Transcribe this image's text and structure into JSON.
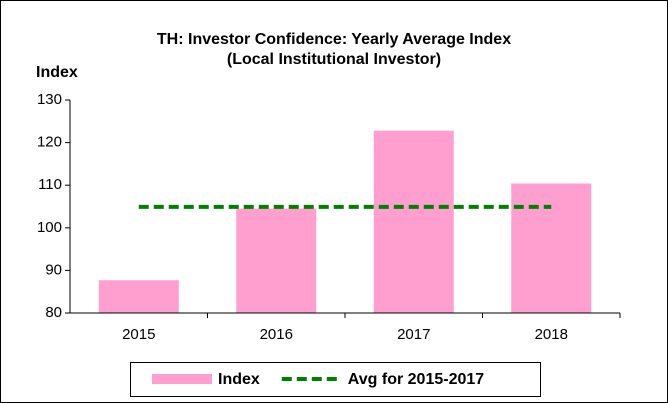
{
  "chart_data": {
    "type": "bar_line",
    "title": "TH: Investor Confidence: Yearly Average Index",
    "subtitle": "(Local Institutional Investor)",
    "y_label": "Index",
    "categories": [
      "2015",
      "2016",
      "2017",
      "2018"
    ],
    "series": [
      {
        "name": "Index",
        "type": "bar",
        "color": "#ff9fcf",
        "values": [
          87.7,
          104.5,
          122.8,
          110.4
        ]
      },
      {
        "name": "Avg for 2015-2017",
        "type": "line",
        "color": "#008000",
        "dashed": true,
        "values": [
          104.9,
          104.9,
          104.9,
          104.9
        ]
      }
    ],
    "ylim": [
      80,
      130
    ],
    "yticks": [
      80,
      90,
      100,
      110,
      120,
      130
    ],
    "legend": "bottom"
  }
}
